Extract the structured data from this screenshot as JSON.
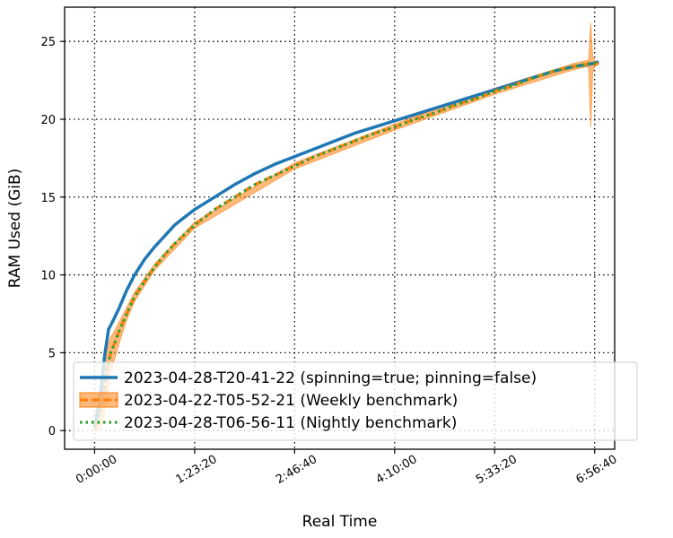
{
  "chart_data": {
    "type": "line",
    "xlabel": "Real Time",
    "ylabel": "RAM Used (GiB)",
    "xlim": [
      -1500,
      26000
    ],
    "ylim": [
      -1.2,
      27.2
    ],
    "x_ticks": [
      {
        "value": 0,
        "label": "0:00:00"
      },
      {
        "value": 5000,
        "label": "1:23:20"
      },
      {
        "value": 10000,
        "label": "2:46:40"
      },
      {
        "value": 15000,
        "label": "4:10:00"
      },
      {
        "value": 20000,
        "label": "5:33:20"
      },
      {
        "value": 25000,
        "label": "6:56:40"
      }
    ],
    "y_ticks": [
      {
        "value": 0,
        "label": "0"
      },
      {
        "value": 5,
        "label": "5"
      },
      {
        "value": 10,
        "label": "10"
      },
      {
        "value": 15,
        "label": "15"
      },
      {
        "value": 20,
        "label": "20"
      },
      {
        "value": 25,
        "label": "25"
      }
    ],
    "grid": true,
    "legend_position": "lower-right",
    "series": [
      {
        "name": "2023-04-28-T20-41-22 (spinning=true; pinning=false)",
        "color": "#1f77b4",
        "style": "solid",
        "x": [
          0,
          200,
          350,
          500,
          700,
          900,
          1200,
          1600,
          2000,
          2500,
          3000,
          3500,
          4000,
          4500,
          5000,
          6000,
          7000,
          8000,
          9000,
          10000,
          11000,
          12000,
          13000,
          14000,
          15000,
          16000,
          17000,
          18000,
          19000,
          20000,
          21000,
          22000,
          23000,
          24000,
          25000,
          25200
        ],
        "y": [
          0.3,
          1.5,
          3.0,
          4.8,
          6.5,
          7.0,
          7.8,
          9.0,
          10.0,
          11.0,
          11.8,
          12.5,
          13.2,
          13.7,
          14.2,
          15.0,
          15.8,
          16.5,
          17.1,
          17.6,
          18.1,
          18.6,
          19.1,
          19.5,
          19.9,
          20.3,
          20.7,
          21.1,
          21.5,
          21.9,
          22.3,
          22.7,
          23.1,
          23.4,
          23.6,
          23.7
        ]
      },
      {
        "name": "2023-04-22-T05-52-21 (Weekly benchmark)",
        "color": "#ff7f0e",
        "style": "dashed",
        "x": [
          0,
          200,
          400,
          600,
          800,
          1000,
          1200,
          1600,
          2000,
          2500,
          3000,
          3500,
          4000,
          4500,
          5000,
          6000,
          7000,
          8000,
          9000,
          10000,
          11000,
          12000,
          13000,
          14000,
          15000,
          16000,
          17000,
          18000,
          19000,
          20000,
          21000,
          22000,
          23000,
          24000,
          24800,
          25000,
          25200
        ],
        "y": [
          0.2,
          0.8,
          2.0,
          3.8,
          5.0,
          5.6,
          6.3,
          7.5,
          8.6,
          9.6,
          10.5,
          11.3,
          12.0,
          12.6,
          13.2,
          14.2,
          15.0,
          15.8,
          16.4,
          17.0,
          17.6,
          18.1,
          18.6,
          19.1,
          19.5,
          20.0,
          20.4,
          20.9,
          21.3,
          21.8,
          22.2,
          22.7,
          23.1,
          23.4,
          23.6,
          23.5,
          23.6
        ]
      },
      {
        "name": "2023-04-28-T06-56-11 (Nightly benchmark)",
        "color": "#2ca02c",
        "style": "dotted",
        "x": [
          0,
          200,
          400,
          600,
          800,
          1000,
          1200,
          1600,
          2000,
          2500,
          3000,
          3500,
          4000,
          4500,
          5000,
          6000,
          7000,
          8000,
          9000,
          10000,
          11000,
          12000,
          13000,
          14000,
          15000,
          16000,
          17000,
          18000,
          19000,
          20000,
          21000,
          22000,
          23000,
          24000,
          24800,
          25200
        ],
        "y": [
          0.2,
          0.8,
          2.0,
          3.8,
          5.0,
          5.6,
          6.3,
          7.5,
          8.6,
          9.6,
          10.5,
          11.3,
          12.0,
          12.6,
          13.2,
          14.2,
          15.0,
          15.8,
          16.4,
          17.0,
          17.6,
          18.1,
          18.6,
          19.1,
          19.5,
          20.0,
          20.4,
          20.9,
          21.3,
          21.8,
          22.2,
          22.7,
          23.1,
          23.4,
          23.6,
          23.6
        ]
      }
    ],
    "confidence_band": {
      "series_index": 1,
      "color": "#ff7f0e",
      "x": [
        0,
        200,
        400,
        600,
        800,
        1000,
        1200,
        1600,
        2000,
        3000,
        5000,
        10000,
        15000,
        20000,
        24000,
        24700,
        24800,
        24900,
        25000
      ],
      "lower": [
        0.0,
        0.0,
        0.5,
        2.0,
        3.8,
        4.6,
        5.5,
        7.1,
        8.3,
        10.3,
        13.0,
        16.8,
        19.3,
        21.6,
        23.2,
        23.4,
        19.5,
        23.0,
        23.4
      ],
      "upper": [
        0.6,
        2.0,
        3.6,
        5.2,
        6.0,
        6.4,
        6.9,
        7.9,
        8.9,
        10.7,
        13.4,
        17.2,
        19.7,
        22.0,
        23.6,
        23.8,
        26.2,
        24.0,
        23.8
      ]
    }
  }
}
